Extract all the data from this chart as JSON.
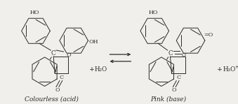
{
  "background_color": "#f0efeb",
  "text_color": "#2a2a2a",
  "structure_color": "#2a2a2a",
  "fig_width": 3.39,
  "fig_height": 1.49,
  "dpi": 100,
  "left_label": "Colourless (acid)",
  "right_label": "Pink (base)",
  "left_plus_text": "+ H₂O",
  "right_plus_text": "+ H₃O⁺",
  "font_size_label": 6.5,
  "font_size_chem": 5.5,
  "font_size_atom": 5.8,
  "ring_lw": 0.7
}
